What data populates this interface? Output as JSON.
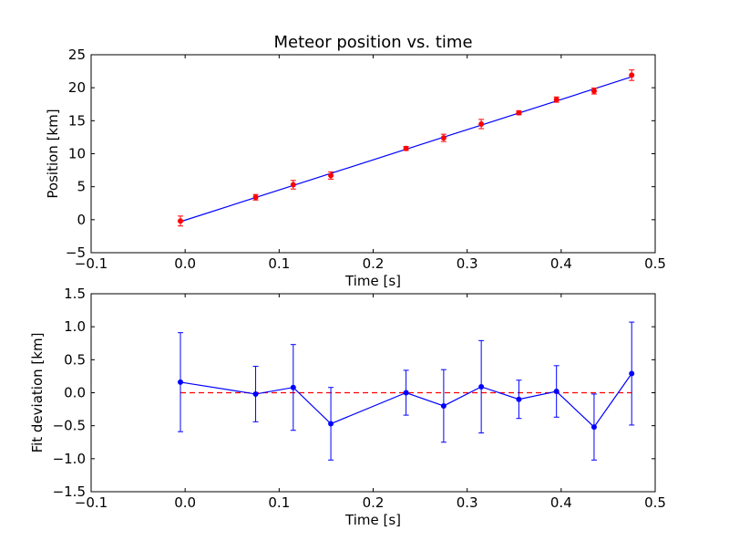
{
  "chart_data": [
    {
      "type": "scatter",
      "title": "Meteor position vs. time",
      "xlabel": "Time [s]",
      "ylabel": "Position [km]",
      "xlim": [
        -0.1,
        0.5
      ],
      "ylim": [
        -5,
        25
      ],
      "xticks": [
        -0.1,
        0.0,
        0.1,
        0.2,
        0.3,
        0.4,
        0.5
      ],
      "xtick_labels": [
        "−0.1",
        "0.0",
        "0.1",
        "0.2",
        "0.3",
        "0.4",
        "0.5"
      ],
      "yticks": [
        -5,
        0,
        5,
        10,
        15,
        20,
        25
      ],
      "ytick_labels": [
        "−5",
        "0",
        "5",
        "10",
        "15",
        "20",
        "25"
      ],
      "grid": false,
      "series": [
        {
          "kind": "errorbar",
          "color": "#ff0000",
          "x": [
            -0.005,
            0.075,
            0.115,
            0.155,
            0.235,
            0.275,
            0.315,
            0.355,
            0.395,
            0.435,
            0.475
          ],
          "y": [
            -0.2,
            3.4,
            5.3,
            6.7,
            10.8,
            12.4,
            14.5,
            16.2,
            18.2,
            19.5,
            21.9
          ],
          "yerr": [
            0.75,
            0.42,
            0.65,
            0.55,
            0.3,
            0.55,
            0.7,
            0.3,
            0.4,
            0.45,
            0.8
          ]
        },
        {
          "kind": "line",
          "color": "#0000ff",
          "x": [
            -0.005,
            0.475
          ],
          "y": [
            -0.3,
            21.65
          ]
        }
      ]
    },
    {
      "type": "line",
      "xlabel": "Time [s]",
      "ylabel": "Fit deviation [km]",
      "xlim": [
        -0.1,
        0.5
      ],
      "ylim": [
        -1.5,
        1.5
      ],
      "xticks": [
        -0.1,
        0.0,
        0.1,
        0.2,
        0.3,
        0.4,
        0.5
      ],
      "xtick_labels": [
        "−0.1",
        "0.0",
        "0.1",
        "0.2",
        "0.3",
        "0.4",
        "0.5"
      ],
      "yticks": [
        -1.5,
        -1.0,
        -0.5,
        0.0,
        0.5,
        1.0,
        1.5
      ],
      "ytick_labels": [
        "−1.5",
        "−1.0",
        "−0.5",
        "0.0",
        "0.5",
        "1.0",
        "1.5"
      ],
      "grid": false,
      "series": [
        {
          "kind": "errorbar-line",
          "color": "#0000ff",
          "x": [
            -0.005,
            0.075,
            0.115,
            0.155,
            0.235,
            0.275,
            0.315,
            0.355,
            0.395,
            0.435,
            0.475
          ],
          "y": [
            0.16,
            -0.02,
            0.08,
            -0.47,
            0.0,
            -0.2,
            0.09,
            -0.1,
            0.02,
            -0.52,
            0.29
          ],
          "yerr": [
            0.75,
            0.42,
            0.65,
            0.55,
            0.34,
            0.55,
            0.7,
            0.29,
            0.39,
            0.5,
            0.78
          ]
        },
        {
          "kind": "reference-line",
          "color": "#ff0000",
          "dashed": true,
          "x": [
            -0.005,
            0.475
          ],
          "y": [
            0.0,
            0.0
          ]
        }
      ]
    }
  ]
}
